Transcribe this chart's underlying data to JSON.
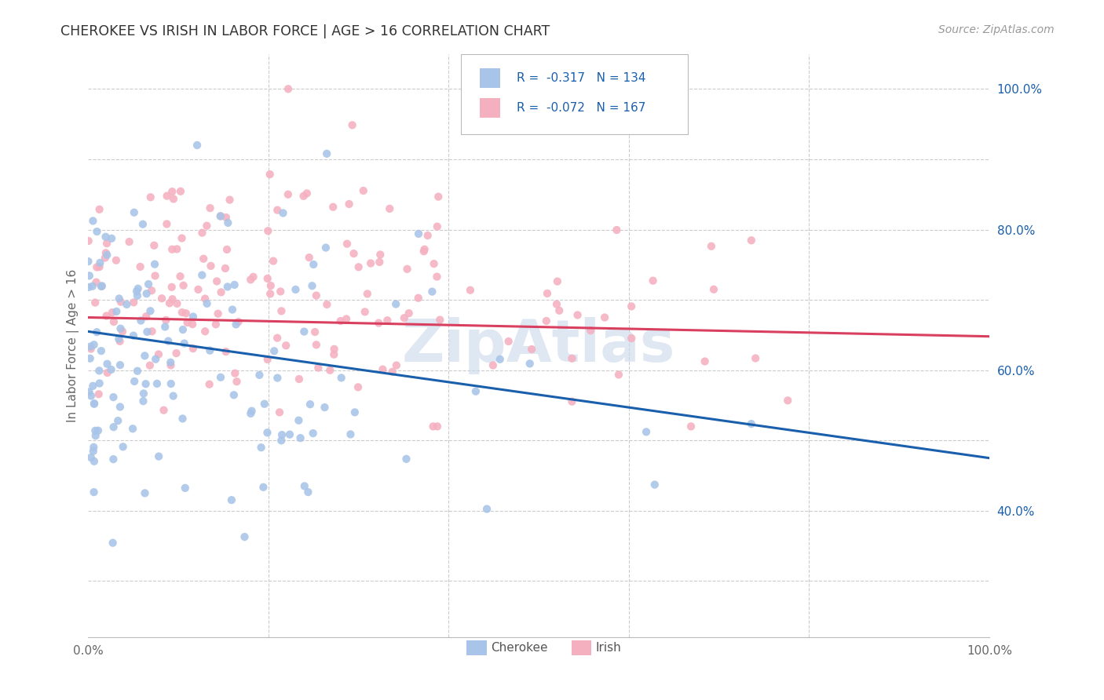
{
  "title": "CHEROKEE VS IRISH IN LABOR FORCE | AGE > 16 CORRELATION CHART",
  "source_text": "Source: ZipAtlas.com",
  "ylabel": "In Labor Force | Age > 16",
  "xlim": [
    0.0,
    1.0
  ],
  "ylim": [
    0.22,
    1.05
  ],
  "cherokee_R": -0.317,
  "cherokee_N": 134,
  "irish_R": -0.072,
  "irish_N": 167,
  "cherokee_color": "#a8c4e8",
  "irish_color": "#f5b0c0",
  "cherokee_line_color": "#1a5fac",
  "irish_line_color": "#d94060",
  "background_color": "#ffffff",
  "grid_color": "#cccccc",
  "title_color": "#333333",
  "watermark_color": "#c8d8ea",
  "watermark_text": "ZipAtlas",
  "seed": 99,
  "blue_line_start_y": 0.655,
  "blue_line_end_y": 0.475,
  "pink_line_start_y": 0.675,
  "pink_line_end_y": 0.648
}
